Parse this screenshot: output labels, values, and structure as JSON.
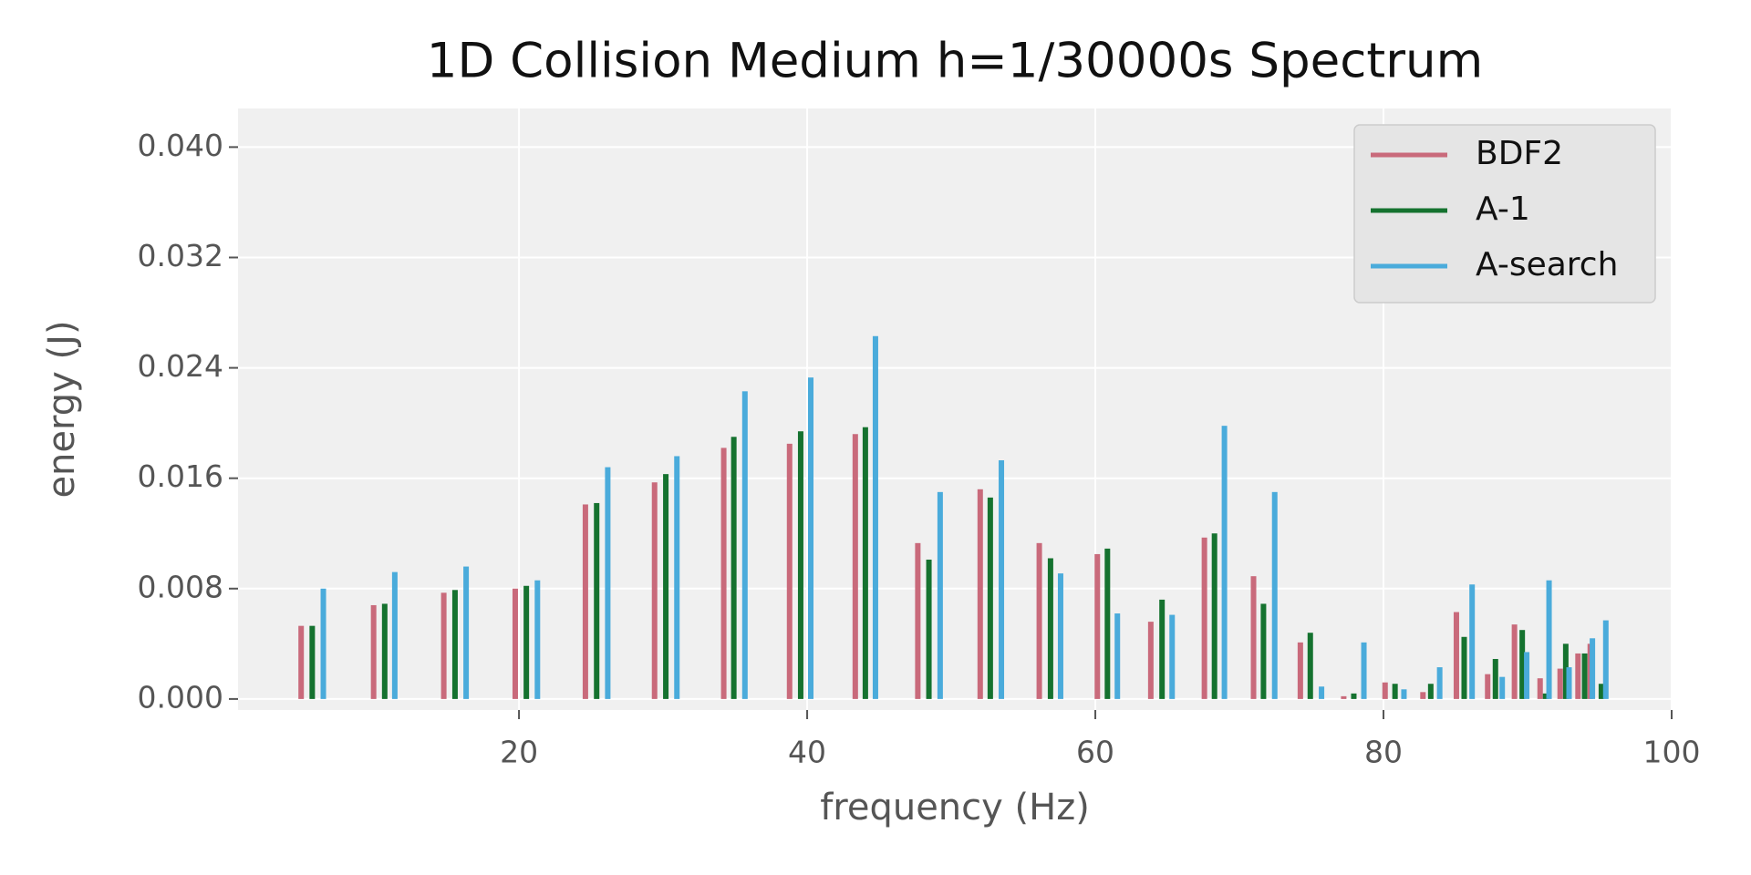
{
  "chart_data": {
    "type": "bar",
    "title": "1D Collision Medium h=1/30000s Spectrum",
    "x_label": "frequency (Hz)",
    "y_label": "energy (J)",
    "xlim": [
      0.5,
      100
    ],
    "xticks": [
      20,
      40,
      60,
      80,
      100
    ],
    "ylim": [
      -0.0008,
      0.0428
    ],
    "yticks": [
      {
        "value": 0,
        "label": "0.000"
      },
      0.008,
      0.016,
      0.024,
      0.032,
      {
        "value": 0.04,
        "label": "0.040"
      }
    ],
    "grid": true,
    "legend": "upper right",
    "series": [
      {
        "name": "BDF2",
        "color": "#c96a7b",
        "x": [
          4.88,
          9.91,
          14.78,
          19.74,
          24.61,
          29.41,
          34.21,
          38.78,
          43.34,
          47.68,
          52.01,
          56.11,
          60.14,
          63.85,
          67.57,
          70.98,
          74.23,
          77.24,
          80.11,
          82.74,
          85.06,
          87.23,
          89.09,
          90.87,
          92.26,
          93.5,
          94.35
        ],
        "values": [
          0.0053,
          0.0068,
          0.0077,
          0.008,
          0.0141,
          0.0157,
          0.0182,
          0.0185,
          0.0192,
          0.0113,
          0.0152,
          0.0113,
          0.0105,
          0.0056,
          0.0117,
          0.0089,
          0.0041,
          0.0002,
          0.0012,
          0.0005,
          0.0063,
          0.0018,
          0.0054,
          0.0015,
          0.0022,
          0.0033,
          0.004
        ]
      },
      {
        "name": "A-1",
        "color": "#15722f",
        "x": [
          5.65,
          10.68,
          15.56,
          20.51,
          25.39,
          30.19,
          34.91,
          39.55,
          44.04,
          48.45,
          52.71,
          56.89,
          60.84,
          64.63,
          68.27,
          71.67,
          74.92,
          77.94,
          80.8,
          83.28,
          85.6,
          87.77,
          89.63,
          91.25,
          92.65,
          93.96,
          95.12
        ],
        "values": [
          0.0053,
          0.0069,
          0.0079,
          0.0082,
          0.0142,
          0.0163,
          0.019,
          0.0194,
          0.0197,
          0.0101,
          0.0146,
          0.0102,
          0.0109,
          0.0072,
          0.012,
          0.0069,
          0.0048,
          0.0004,
          0.0011,
          0.0011,
          0.0045,
          0.0029,
          0.005,
          0.0004,
          0.004,
          0.0033,
          0.0011
        ]
      },
      {
        "name": "A-search",
        "color": "#4aabdb",
        "x": [
          6.42,
          11.38,
          16.33,
          21.28,
          26.16,
          30.96,
          35.68,
          40.25,
          44.74,
          49.23,
          53.48,
          57.59,
          61.53,
          65.33,
          68.96,
          72.45,
          75.7,
          78.64,
          81.42,
          83.9,
          86.15,
          88.24,
          89.94,
          91.49,
          92.88,
          94.5,
          95.43
        ],
        "values": [
          0.008,
          0.0092,
          0.0096,
          0.0086,
          0.0168,
          0.0176,
          0.0223,
          0.0233,
          0.0263,
          0.015,
          0.0173,
          0.0091,
          0.0062,
          0.0061,
          0.0198,
          0.015,
          0.0009,
          0.0041,
          0.0007,
          0.0023,
          0.0083,
          0.0016,
          0.0034,
          0.0086,
          0.0023,
          0.0044,
          0.0057
        ]
      }
    ]
  }
}
